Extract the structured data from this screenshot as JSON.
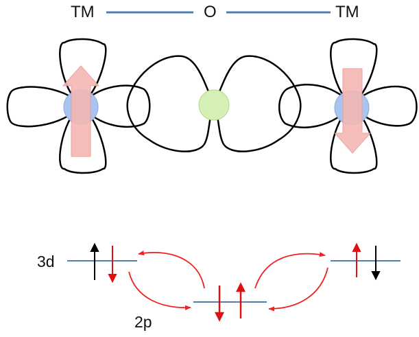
{
  "bond": {
    "left_label": "TM",
    "center_label": "O",
    "right_label": "TM",
    "bond_color": "#4f7fb0"
  },
  "orbitals": {
    "tm_atom_color": "#a9c4ef",
    "o_atom_color": "#d4f0b4",
    "lobe_stroke": "#000000",
    "spin_arrow_color": "#f4b8b4",
    "left_spin": "up",
    "right_spin": "down"
  },
  "levels": {
    "d_label": "3d",
    "p_label": "2p",
    "line_color": "#4f7fb0",
    "electron_colors": {
      "red": "#dd1111",
      "black": "#000000"
    },
    "hopping_arrow_color": "#ee2222"
  }
}
